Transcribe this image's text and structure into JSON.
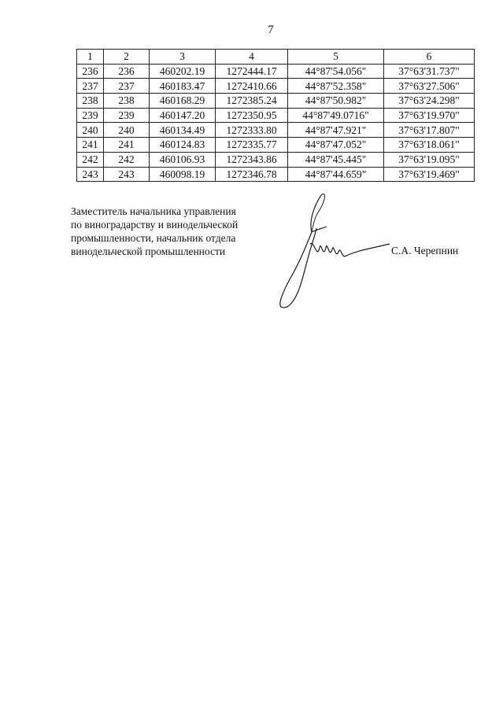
{
  "page_number": "7",
  "table": {
    "header": [
      "1",
      "2",
      "3",
      "4",
      "5",
      "6"
    ],
    "rows": [
      [
        "236",
        "236",
        "460202.19",
        "1272444.17",
        "44°87'54.056\"",
        "37°63'31.737\""
      ],
      [
        "237",
        "237",
        "460183.47",
        "1272410.66",
        "44°87'52.358\"",
        "37°63'27.506\""
      ],
      [
        "238",
        "238",
        "460168.29",
        "1272385.24",
        "44°87'50.982\"",
        "37°63'24.298\""
      ],
      [
        "239",
        "239",
        "460147.20",
        "1272350.95",
        "44°87'49.0716\"",
        "37°63'19.970\""
      ],
      [
        "240",
        "240",
        "460134.49",
        "1272333.80",
        "44°87'47.921\"",
        "37°63'17.807\""
      ],
      [
        "241",
        "241",
        "460124.83",
        "1272335.77",
        "44°87'47.052\"",
        "37°63'18.061\""
      ],
      [
        "242",
        "242",
        "460106.93",
        "1272343.86",
        "44°87'45.445\"",
        "37°63'19.095\""
      ],
      [
        "243",
        "243",
        "460098.19",
        "1272346.78",
        "44°87'44.659\"",
        "37°63'19.469\""
      ]
    ]
  },
  "signature_block": {
    "position_lines": [
      "Заместитель начальника управления",
      "по виноградарству и винодельческой",
      "промышленности, начальник отдела",
      "винодельческой промышленности"
    ],
    "name": "С.А. Черепнин"
  }
}
